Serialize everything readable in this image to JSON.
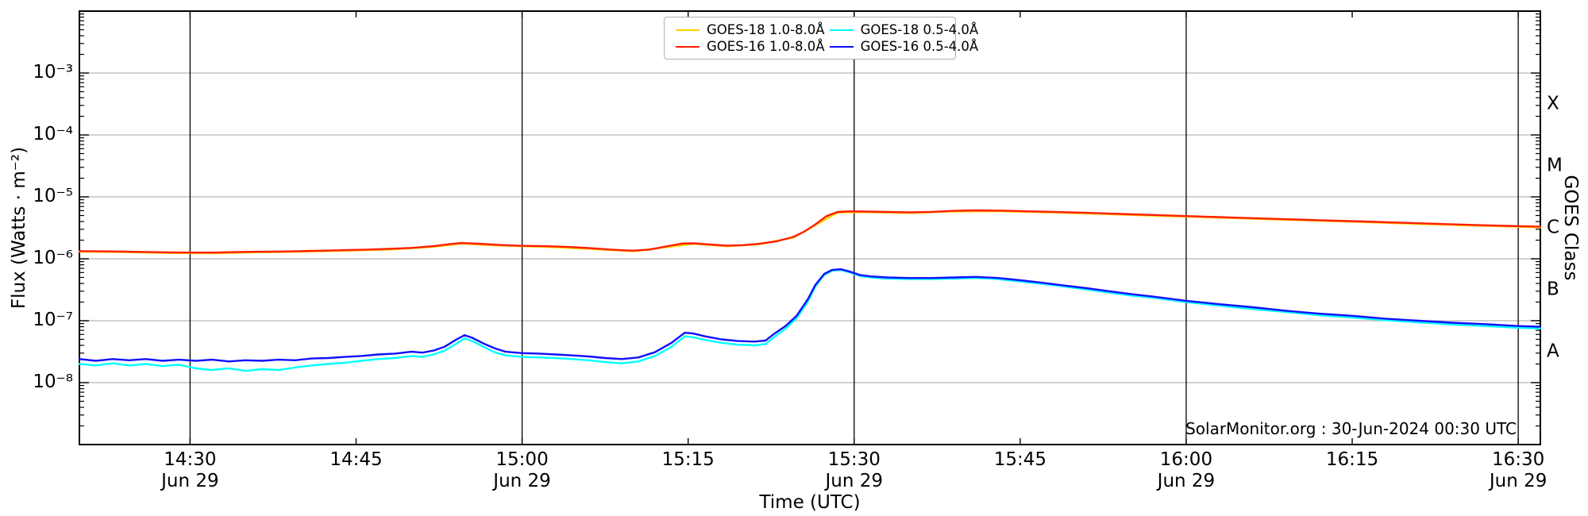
{
  "figure": {
    "x_axis_label": "Time (UTC)",
    "y_axis_label": "Flux (Watts · m⁻²)",
    "right_axis_label": "GOES Class",
    "watermark": "SolarMonitor.org : 30-Jun-2024 00:30 UTC"
  },
  "legend": {
    "entries": [
      {
        "label": "GOES-18 1.0-8.0Å",
        "color": "#ffd300"
      },
      {
        "label": "GOES-18 0.5-4.0Å",
        "color": "#00ffff"
      },
      {
        "label": "GOES-16 1.0-8.0Å",
        "color": "#ff1f00"
      },
      {
        "label": "GOES-16 0.5-4.0Å",
        "color": "#1010ff"
      }
    ]
  },
  "chart_data": {
    "type": "line",
    "xlabel": "Time (UTC)",
    "ylabel": "Flux (Watts · m⁻²)",
    "ylabel_right": "GOES Class",
    "x_unit": "minutes after 14:20 UTC on 29-Jun-2024",
    "x_max": 132,
    "ylim": [
      1e-09,
      0.01
    ],
    "grid": {
      "h_color": "#b6b6b6",
      "v_color": "#000000",
      "horizontal": true,
      "vertical_at_major_x": true
    },
    "legend_position": "top-center",
    "y_ticks": [
      {
        "exp": -3,
        "label": "10⁻³"
      },
      {
        "exp": -4,
        "label": "10⁻⁴"
      },
      {
        "exp": -5,
        "label": "10⁻⁵"
      },
      {
        "exp": -6,
        "label": "10⁻⁶"
      },
      {
        "exp": -7,
        "label": "10⁻⁷"
      },
      {
        "exp": -8,
        "label": "10⁻⁸"
      }
    ],
    "x_ticks": [
      {
        "t": 10,
        "label": "14:30",
        "date": "Jun 29",
        "major": true
      },
      {
        "t": 25,
        "label": "14:45",
        "date": "",
        "major": false
      },
      {
        "t": 40,
        "label": "15:00",
        "date": "Jun 29",
        "major": true
      },
      {
        "t": 55,
        "label": "15:15",
        "date": "",
        "major": false
      },
      {
        "t": 70,
        "label": "15:30",
        "date": "Jun 29",
        "major": true
      },
      {
        "t": 85,
        "label": "15:45",
        "date": "",
        "major": false
      },
      {
        "t": 100,
        "label": "16:00",
        "date": "Jun 29",
        "major": true
      },
      {
        "t": 115,
        "label": "16:15",
        "date": "",
        "major": false
      },
      {
        "t": 130,
        "label": "16:30",
        "date": "Jun 29",
        "major": true
      }
    ],
    "goes_classes": [
      {
        "label": "X",
        "log_flux": -3.5
      },
      {
        "label": "M",
        "log_flux": -4.5
      },
      {
        "label": "C",
        "log_flux": -5.5
      },
      {
        "label": "B",
        "log_flux": -6.5
      },
      {
        "label": "A",
        "log_flux": -7.5
      }
    ],
    "series": [
      {
        "name": "GOES-18 1.0-8.0Å",
        "color": "#ffd300",
        "width": 2.4,
        "points": [
          [
            0,
            1.3e-06
          ],
          [
            4,
            1.28e-06
          ],
          [
            8,
            1.24e-06
          ],
          [
            12,
            1.23e-06
          ],
          [
            16,
            1.27e-06
          ],
          [
            20,
            1.3e-06
          ],
          [
            24,
            1.35e-06
          ],
          [
            28,
            1.41e-06
          ],
          [
            32,
            1.56e-06
          ],
          [
            34.5,
            1.76e-06
          ],
          [
            38,
            1.63e-06
          ],
          [
            42,
            1.56e-06
          ],
          [
            46,
            1.45e-06
          ],
          [
            50,
            1.32e-06
          ],
          [
            53,
            1.54e-06
          ],
          [
            55.5,
            1.74e-06
          ],
          [
            58.5,
            1.59e-06
          ],
          [
            61.5,
            1.72e-06
          ],
          [
            64.5,
            2.2e-06
          ],
          [
            66.5,
            3.5e-06
          ],
          [
            68.5,
            5.57e-06
          ],
          [
            71,
            5.67e-06
          ],
          [
            75,
            5.49e-06
          ],
          [
            79,
            5.81e-06
          ],
          [
            83,
            5.86e-06
          ],
          [
            88,
            5.59e-06
          ],
          [
            94,
            5.18e-06
          ],
          [
            100,
            4.79e-06
          ],
          [
            108,
            4.32e-06
          ],
          [
            116,
            3.91e-06
          ],
          [
            124,
            3.52e-06
          ],
          [
            132,
            3.22e-06
          ]
        ]
      },
      {
        "name": "GOES-16 1.0-8.0Å",
        "color": "#ff1f00",
        "width": 2.4,
        "points": [
          [
            0,
            1.33e-06
          ],
          [
            2,
            1.32e-06
          ],
          [
            4,
            1.31e-06
          ],
          [
            6,
            1.29e-06
          ],
          [
            8,
            1.27e-06
          ],
          [
            10,
            1.26e-06
          ],
          [
            12,
            1.26e-06
          ],
          [
            14,
            1.28e-06
          ],
          [
            16,
            1.3e-06
          ],
          [
            18,
            1.31e-06
          ],
          [
            20,
            1.33e-06
          ],
          [
            22,
            1.35e-06
          ],
          [
            24,
            1.38e-06
          ],
          [
            26,
            1.41e-06
          ],
          [
            28,
            1.45e-06
          ],
          [
            30,
            1.5e-06
          ],
          [
            32,
            1.6e-06
          ],
          [
            33.5,
            1.73e-06
          ],
          [
            34.5,
            1.8e-06
          ],
          [
            36,
            1.75e-06
          ],
          [
            38,
            1.67e-06
          ],
          [
            40,
            1.62e-06
          ],
          [
            42,
            1.6e-06
          ],
          [
            44,
            1.56e-06
          ],
          [
            46,
            1.49e-06
          ],
          [
            48,
            1.41e-06
          ],
          [
            50,
            1.35e-06
          ],
          [
            51.5,
            1.41e-06
          ],
          [
            53,
            1.58e-06
          ],
          [
            54.5,
            1.77e-06
          ],
          [
            55.5,
            1.78e-06
          ],
          [
            57,
            1.7e-06
          ],
          [
            58.5,
            1.63e-06
          ],
          [
            60,
            1.66e-06
          ],
          [
            61.5,
            1.76e-06
          ],
          [
            63,
            1.92e-06
          ],
          [
            64.5,
            2.25e-06
          ],
          [
            65.5,
            2.75e-06
          ],
          [
            66.5,
            3.6e-06
          ],
          [
            67.5,
            4.9e-06
          ],
          [
            68.5,
            5.7e-06
          ],
          [
            69.5,
            5.85e-06
          ],
          [
            71,
            5.8e-06
          ],
          [
            73,
            5.7e-06
          ],
          [
            75,
            5.62e-06
          ],
          [
            77,
            5.72e-06
          ],
          [
            79,
            5.95e-06
          ],
          [
            81,
            6.05e-06
          ],
          [
            83,
            6e-06
          ],
          [
            85,
            5.9e-06
          ],
          [
            88,
            5.72e-06
          ],
          [
            91,
            5.52e-06
          ],
          [
            94,
            5.3e-06
          ],
          [
            97,
            5.1e-06
          ],
          [
            100,
            4.9e-06
          ],
          [
            104,
            4.65e-06
          ],
          [
            108,
            4.42e-06
          ],
          [
            112,
            4.2e-06
          ],
          [
            116,
            4e-06
          ],
          [
            120,
            3.8e-06
          ],
          [
            124,
            3.6e-06
          ],
          [
            128,
            3.43e-06
          ],
          [
            132,
            3.3e-06
          ]
        ]
      },
      {
        "name": "GOES-18 0.5-4.0Å",
        "color": "#00ffff",
        "width": 2.4,
        "points": [
          [
            0,
            2e-08
          ],
          [
            1.5,
            1.9e-08
          ],
          [
            3,
            2.05e-08
          ],
          [
            4.5,
            1.9e-08
          ],
          [
            6,
            2e-08
          ],
          [
            7.5,
            1.85e-08
          ],
          [
            9,
            1.95e-08
          ],
          [
            10.5,
            1.7e-08
          ],
          [
            12,
            1.6e-08
          ],
          [
            13.5,
            1.7e-08
          ],
          [
            15,
            1.55e-08
          ],
          [
            16.5,
            1.65e-08
          ],
          [
            18,
            1.6e-08
          ],
          [
            19.5,
            1.75e-08
          ],
          [
            21,
            1.9e-08
          ],
          [
            22.5,
            2e-08
          ],
          [
            24,
            2.1e-08
          ],
          [
            25.5,
            2.25e-08
          ],
          [
            27,
            2.4e-08
          ],
          [
            28.5,
            2.5e-08
          ],
          [
            30,
            2.7e-08
          ],
          [
            31,
            2.6e-08
          ],
          [
            32,
            2.85e-08
          ],
          [
            33,
            3.3e-08
          ],
          [
            34,
            4.2e-08
          ],
          [
            34.8,
            5.2e-08
          ],
          [
            35.5,
            4.7e-08
          ],
          [
            36.5,
            3.8e-08
          ],
          [
            37.5,
            3.1e-08
          ],
          [
            38.5,
            2.75e-08
          ],
          [
            40,
            2.6e-08
          ],
          [
            41.5,
            2.55e-08
          ],
          [
            43,
            2.5e-08
          ],
          [
            44.5,
            2.4e-08
          ],
          [
            46,
            2.3e-08
          ],
          [
            47.5,
            2.15e-08
          ],
          [
            49,
            2.05e-08
          ],
          [
            50.5,
            2.2e-08
          ],
          [
            52,
            2.7e-08
          ],
          [
            53.5,
            3.8e-08
          ],
          [
            54.7,
            5.6e-08
          ],
          [
            55.5,
            5.4e-08
          ],
          [
            56.5,
            4.9e-08
          ],
          [
            58,
            4.4e-08
          ],
          [
            59.5,
            4.1e-08
          ],
          [
            61,
            4e-08
          ],
          [
            62,
            4.2e-08
          ],
          [
            62.8,
            5.5e-08
          ],
          [
            63.8,
            7.4e-08
          ],
          [
            64.8,
            1.1e-07
          ],
          [
            65.8,
            2e-07
          ],
          [
            66.5,
            3.6e-07
          ],
          [
            67.3,
            5.5e-07
          ],
          [
            68,
            6.4e-07
          ],
          [
            68.8,
            6.6e-07
          ],
          [
            69.5,
            6.1e-07
          ],
          [
            70.5,
            5.3e-07
          ],
          [
            71.5,
            5e-07
          ],
          [
            73,
            4.8e-07
          ],
          [
            75,
            4.7e-07
          ],
          [
            77,
            4.7e-07
          ],
          [
            79,
            4.8e-07
          ],
          [
            81,
            4.9e-07
          ],
          [
            83,
            4.7e-07
          ],
          [
            85,
            4.3e-07
          ],
          [
            87,
            3.95e-07
          ],
          [
            89,
            3.55e-07
          ],
          [
            91,
            3.2e-07
          ],
          [
            93,
            2.85e-07
          ],
          [
            95,
            2.55e-07
          ],
          [
            97,
            2.35e-07
          ],
          [
            100,
            2e-07
          ],
          [
            103,
            1.75e-07
          ],
          [
            106,
            1.55e-07
          ],
          [
            109,
            1.38e-07
          ],
          [
            112,
            1.23e-07
          ],
          [
            115,
            1.13e-07
          ],
          [
            118,
            1.02e-07
          ],
          [
            121,
            9.4e-08
          ],
          [
            124,
            8.7e-08
          ],
          [
            127,
            8.2e-08
          ],
          [
            130,
            7.7e-08
          ],
          [
            132,
            7.5e-08
          ]
        ]
      },
      {
        "name": "GOES-16 0.5-4.0Å",
        "color": "#1010ff",
        "width": 2.4,
        "points": [
          [
            0,
            2.4e-08
          ],
          [
            1.5,
            2.25e-08
          ],
          [
            3,
            2.4e-08
          ],
          [
            4.5,
            2.3e-08
          ],
          [
            6,
            2.4e-08
          ],
          [
            7.5,
            2.25e-08
          ],
          [
            9,
            2.35e-08
          ],
          [
            10.5,
            2.25e-08
          ],
          [
            12,
            2.35e-08
          ],
          [
            13.5,
            2.2e-08
          ],
          [
            15,
            2.3e-08
          ],
          [
            16.5,
            2.25e-08
          ],
          [
            18,
            2.35e-08
          ],
          [
            19.5,
            2.3e-08
          ],
          [
            21,
            2.45e-08
          ],
          [
            22.5,
            2.5e-08
          ],
          [
            24,
            2.6e-08
          ],
          [
            25.5,
            2.7e-08
          ],
          [
            27,
            2.85e-08
          ],
          [
            28.5,
            2.95e-08
          ],
          [
            30,
            3.15e-08
          ],
          [
            31,
            3.05e-08
          ],
          [
            32,
            3.3e-08
          ],
          [
            33,
            3.8e-08
          ],
          [
            34,
            4.9e-08
          ],
          [
            34.8,
            5.85e-08
          ],
          [
            35.5,
            5.3e-08
          ],
          [
            36.5,
            4.3e-08
          ],
          [
            37.5,
            3.6e-08
          ],
          [
            38.5,
            3.15e-08
          ],
          [
            40,
            3e-08
          ],
          [
            41.5,
            2.95e-08
          ],
          [
            43,
            2.85e-08
          ],
          [
            44.5,
            2.75e-08
          ],
          [
            46,
            2.65e-08
          ],
          [
            47.5,
            2.5e-08
          ],
          [
            49,
            2.4e-08
          ],
          [
            50.5,
            2.55e-08
          ],
          [
            52,
            3.1e-08
          ],
          [
            53.5,
            4.4e-08
          ],
          [
            54.7,
            6.4e-08
          ],
          [
            55.5,
            6.2e-08
          ],
          [
            56.5,
            5.6e-08
          ],
          [
            58,
            5e-08
          ],
          [
            59.5,
            4.7e-08
          ],
          [
            61,
            4.6e-08
          ],
          [
            62,
            4.8e-08
          ],
          [
            62.8,
            6.2e-08
          ],
          [
            63.8,
            8.2e-08
          ],
          [
            64.8,
            1.2e-07
          ],
          [
            65.8,
            2.2e-07
          ],
          [
            66.5,
            3.8e-07
          ],
          [
            67.3,
            5.7e-07
          ],
          [
            68,
            6.6e-07
          ],
          [
            68.8,
            6.8e-07
          ],
          [
            69.5,
            6.3e-07
          ],
          [
            70.5,
            5.5e-07
          ],
          [
            71.5,
            5.2e-07
          ],
          [
            73,
            5e-07
          ],
          [
            75,
            4.9e-07
          ],
          [
            77,
            4.9e-07
          ],
          [
            79,
            5e-07
          ],
          [
            81,
            5.1e-07
          ],
          [
            83,
            4.9e-07
          ],
          [
            85,
            4.5e-07
          ],
          [
            87,
            4.1e-07
          ],
          [
            89,
            3.7e-07
          ],
          [
            91,
            3.35e-07
          ],
          [
            93,
            3e-07
          ],
          [
            95,
            2.7e-07
          ],
          [
            97,
            2.45e-07
          ],
          [
            100,
            2.1e-07
          ],
          [
            103,
            1.85e-07
          ],
          [
            106,
            1.65e-07
          ],
          [
            109,
            1.45e-07
          ],
          [
            112,
            1.3e-07
          ],
          [
            115,
            1.2e-07
          ],
          [
            118,
            1.08e-07
          ],
          [
            121,
            1e-07
          ],
          [
            124,
            9.3e-08
          ],
          [
            127,
            8.8e-08
          ],
          [
            130,
            8.2e-08
          ],
          [
            132,
            8e-08
          ]
        ]
      }
    ]
  }
}
